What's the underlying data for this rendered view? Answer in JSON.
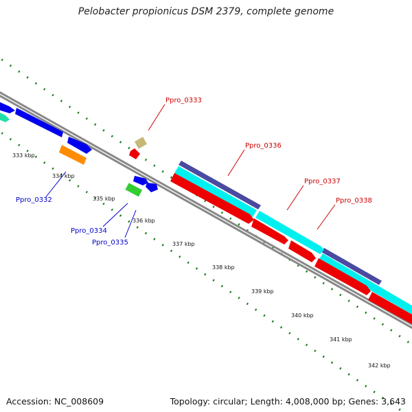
{
  "title": "Pelobacter propionicus DSM 2379, complete genome",
  "footer": {
    "accession": "Accession: NC_008609",
    "topology": "Topology: circular; Length: 4,008,000 bp; Genes: 3,643"
  },
  "ticks": [
    {
      "label": "333 kbp"
    },
    {
      "label": "334 kbp"
    },
    {
      "label": "335 kbp"
    },
    {
      "label": "336 kbp"
    },
    {
      "label": "337 kbp"
    },
    {
      "label": "338 kbp"
    },
    {
      "label": "339 kbp"
    },
    {
      "label": "340 kbp"
    },
    {
      "label": "341 kbp"
    },
    {
      "label": "342 kbp"
    }
  ],
  "gene_labels": [
    {
      "label": "Ppro_0332",
      "color": "#0000cc"
    },
    {
      "label": "Ppro_0333",
      "color": "#cc0000"
    },
    {
      "label": "Ppro_0334",
      "color": "#0000cc"
    },
    {
      "label": "Ppro_0335",
      "color": "#0000cc"
    },
    {
      "label": "Ppro_0336",
      "color": "#cc0000"
    },
    {
      "label": "Ppro_0337",
      "color": "#cc0000"
    },
    {
      "label": "Ppro_0338",
      "color": "#cc0000"
    }
  ],
  "colors": {
    "backbone": "#888888",
    "dots": "#1a7a1a",
    "forward_cds": "#0000ee",
    "reverse_cds": "#ee0000",
    "cyan_feature": "#00f0f0",
    "navy_feature": "#4a4aa0",
    "orange_feature": "#ff8c00",
    "green_feature": "#33cc33",
    "teal_feature": "#22ddaa",
    "khaki_feature": "#c8b878"
  }
}
